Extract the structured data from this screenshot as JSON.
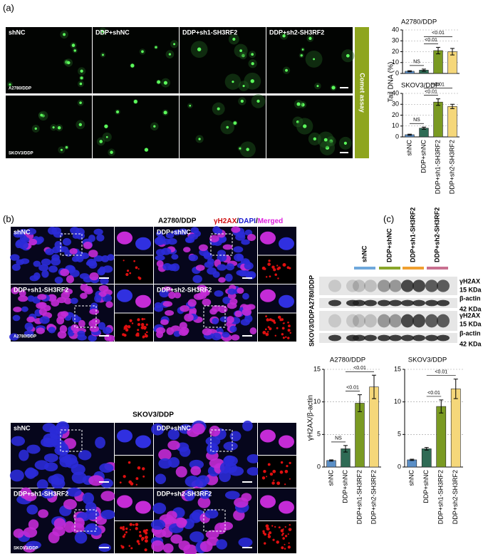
{
  "panel_labels": [
    "(a)",
    "(b)",
    "(c)"
  ],
  "comet": {
    "columns": [
      "shNC",
      "DDP+shNC",
      "DDP+sh1-SH3RF2",
      "DDP+sh2-SH3RF2"
    ],
    "rows": [
      "A2780/DDP",
      "SKOV3/DDP"
    ],
    "side_label": "Comet assay"
  },
  "immuno": {
    "stain": [
      "γH2AX",
      "/",
      "DAPI",
      "/",
      "Merged"
    ],
    "stain_colors": [
      "#d01010",
      "#000000",
      "#1a1ad0",
      "#000000",
      "#e020e0"
    ],
    "blocks": [
      {
        "title": "A2780/DDP",
        "groups": [
          "shNC",
          "DDP+shNC",
          "DDP+sh1-SH3RF2",
          "DDP+sh2-SH3RF2"
        ],
        "corner": "A2780/DDP"
      },
      {
        "title": "SKOV3/DDP",
        "groups": [
          "shNC",
          "DDP+shNC",
          "DDP+sh1-SH3RF2",
          "DDP+sh2-SH3RF2"
        ],
        "corner": "SKOV3/DDP"
      }
    ]
  },
  "blot": {
    "lanes": [
      "shNC",
      "DDP+shNC",
      "DDP+sh1-SH3RF2",
      "DDP+sh2-SH3RF2"
    ],
    "lane_colors": [
      "#6fa8dc",
      "#8aa62a",
      "#f0a030",
      "#c97090"
    ],
    "cells": [
      "A2780/DDP",
      "SKOV3/DDP"
    ],
    "bands": [
      {
        "label": "γH2AX",
        "size": "15 KDa"
      },
      {
        "label": "β-actin",
        "size": "42 KDa"
      },
      {
        "label": "γH2AX",
        "size": "15 KDa"
      },
      {
        "label": "β-actin",
        "size": "42 KDa"
      }
    ]
  },
  "chart_data": [
    {
      "type": "bar",
      "title": "A2780/DDP",
      "ylabel": "Tail DNA (%)",
      "values": [
        2,
        3,
        21,
        20
      ],
      "errors": [
        0.5,
        1,
        3,
        3
      ],
      "colors": [
        "#5b8fc7",
        "#2f6b55",
        "#7a9a22",
        "#f5d77a"
      ],
      "ylim": [
        0,
        40
      ],
      "yticks": [
        0,
        10,
        20,
        30,
        40
      ],
      "grid": true,
      "annotations": [
        "NS",
        "<0.01",
        "<0.01"
      ]
    },
    {
      "type": "bar",
      "title": "SKOV3/DDP",
      "categories": [
        "shNC",
        "DDP+shNC",
        "DDP+sh1-SH3RF2",
        "DDP+sh2-SH3RF2"
      ],
      "values": [
        2,
        8,
        32,
        28
      ],
      "errors": [
        0.5,
        1,
        3,
        2
      ],
      "colors": [
        "#5b8fc7",
        "#2f6b55",
        "#7a9a22",
        "#f5d77a"
      ],
      "ylim": [
        0,
        40
      ],
      "yticks": [
        0,
        10,
        20,
        30,
        40
      ],
      "grid": true,
      "annotations": [
        "NS",
        "<0.01",
        "<0.01"
      ]
    },
    {
      "type": "bar",
      "title": "A2780/DDP",
      "ylabel": "γH2AX/β-actin",
      "categories": [
        "shNC",
        "DDP+shNC",
        "DDP+sh1-SH3RF2",
        "DDP+sh2-SH3RF2"
      ],
      "values": [
        1,
        2.8,
        9.8,
        12.3
      ],
      "errors": [
        0.1,
        0.5,
        1.3,
        1.8
      ],
      "colors": [
        "#5b8fc7",
        "#2f6b55",
        "#7a9a22",
        "#f5d77a"
      ],
      "ylim": [
        0,
        15
      ],
      "yticks": [
        0,
        5,
        10,
        15
      ],
      "grid": true,
      "annotations": [
        "NS",
        "<0.01",
        "<0.01"
      ]
    },
    {
      "type": "bar",
      "title": "SKOV3/DDP",
      "categories": [
        "shNC",
        "DDP+shNC",
        "DDP+sh1-SH3RF2",
        "DDP+sh2-SH3RF2"
      ],
      "values": [
        1.1,
        2.8,
        9.3,
        12
      ],
      "errors": [
        0.1,
        0.2,
        1,
        1.5
      ],
      "colors": [
        "#5b8fc7",
        "#2f6b55",
        "#7a9a22",
        "#f5d77a"
      ],
      "ylim": [
        0,
        15
      ],
      "yticks": [
        0,
        5,
        10,
        15
      ],
      "grid": true,
      "annotations": [
        "<0.01",
        "<0.01"
      ]
    }
  ]
}
